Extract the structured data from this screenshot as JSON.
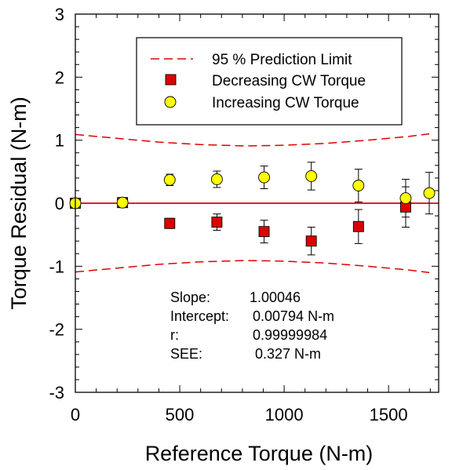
{
  "chart_data": {
    "type": "scatter",
    "xlabel": "Reference Torque (N-m)",
    "ylabel": "Torque Residual (N-m)",
    "xlim": [
      0,
      1740
    ],
    "ylim": [
      -3,
      3
    ],
    "x_ticks": [
      "0",
      "500",
      "1000",
      "1500"
    ],
    "x_tick_values": [
      0,
      500,
      1000,
      1500
    ],
    "y_ticks": [
      "3",
      "2",
      "1",
      "0",
      "-1",
      "-2",
      "-3"
    ],
    "y_tick_values": [
      3,
      2,
      1,
      0,
      -1,
      -2,
      -3
    ],
    "grid": false,
    "legend_position": "top",
    "zero_line_color": "#e00000",
    "series": [
      {
        "name": "Decreasing CW Torque",
        "marker": "square",
        "color": "#dd0000",
        "points": [
          {
            "x": 0,
            "y": 0.0,
            "err": 0.0
          },
          {
            "x": 226,
            "y": 0.01,
            "err": 0.07
          },
          {
            "x": 452,
            "y": -0.32,
            "err": 0.08
          },
          {
            "x": 678,
            "y": -0.3,
            "err": 0.13
          },
          {
            "x": 904,
            "y": -0.45,
            "err": 0.18
          },
          {
            "x": 1130,
            "y": -0.6,
            "err": 0.22
          },
          {
            "x": 1356,
            "y": -0.37,
            "err": 0.27
          },
          {
            "x": 1582,
            "y": -0.06,
            "err": 0.32
          }
        ]
      },
      {
        "name": "Increasing CW Torque",
        "marker": "circle",
        "color": "#ffff00",
        "points": [
          {
            "x": 0,
            "y": 0.0,
            "err": 0.0
          },
          {
            "x": 226,
            "y": 0.01,
            "err": 0.04
          },
          {
            "x": 452,
            "y": 0.37,
            "err": 0.09
          },
          {
            "x": 678,
            "y": 0.38,
            "err": 0.13
          },
          {
            "x": 904,
            "y": 0.41,
            "err": 0.18
          },
          {
            "x": 1130,
            "y": 0.43,
            "err": 0.22
          },
          {
            "x": 1356,
            "y": 0.28,
            "err": 0.26
          },
          {
            "x": 1582,
            "y": 0.08,
            "err": 0.3
          },
          {
            "x": 1695,
            "y": 0.16,
            "err": 0.33
          }
        ]
      }
    ],
    "prediction_limit": {
      "name": "95 % Prediction Limit",
      "color": "#e00000",
      "x": [
        0,
        200,
        400,
        600,
        800,
        848,
        1000,
        1200,
        1400,
        1600,
        1695
      ],
      "upper": [
        1.09,
        1.03,
        0.97,
        0.93,
        0.91,
        0.91,
        0.92,
        0.95,
        1.0,
        1.06,
        1.1
      ],
      "lower": [
        -1.09,
        -1.03,
        -0.97,
        -0.93,
        -0.91,
        -0.91,
        -0.92,
        -0.95,
        -1.0,
        -1.06,
        -1.1
      ]
    },
    "annotations": [
      {
        "label": "Slope:",
        "value": "1.00046"
      },
      {
        "label": "Intercept:",
        "value": "0.00794 N-m"
      },
      {
        "label": "r:",
        "value": "0.99999984"
      },
      {
        "label": "SEE:",
        "value": "0.327 N-m"
      }
    ]
  }
}
